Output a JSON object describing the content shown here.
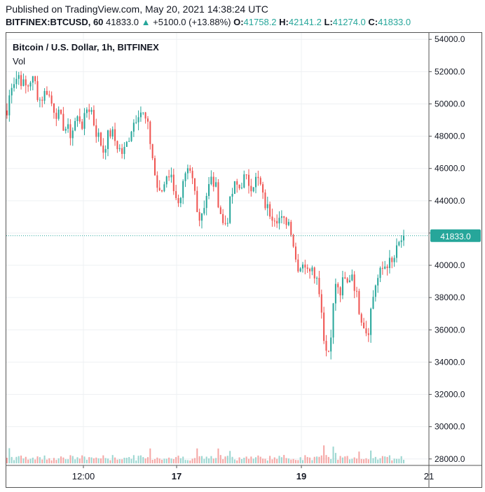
{
  "header": {
    "published": "Published on TradingView.com, May 20, 2021 14:38:24 UTC",
    "symbol": "BITFINEX:BTCUSD, 60",
    "last": "41833.0",
    "change_arrow": "▲",
    "change": "+5100.0 (+13.88%)",
    "o_label": "O:",
    "o_value": "41758.2",
    "h_label": "H:",
    "h_value": "42141.2",
    "l_label": "L:",
    "l_value": "41274.0",
    "c_label": "C:",
    "c_value": "41833.0"
  },
  "colors": {
    "up": "#26a69a",
    "down": "#ef5350",
    "vol_up": "#9ad6d0",
    "vol_down": "#f5a6a4",
    "grid": "#eef0f3"
  },
  "chart_data": {
    "type": "candlestick",
    "title": "Bitcoin / U.S. Dollar, 1h, BITFINEX",
    "volume_label": "Vol",
    "y_ticks": [
      "54000.0",
      "52000.0",
      "50000.0",
      "48000.0",
      "46000.0",
      "44000.0",
      "42000.0",
      "40000.0",
      "38000.0",
      "36000.0",
      "34000.0",
      "32000.0",
      "30000.0",
      "28000.0"
    ],
    "x_ticks": [
      "12:00",
      "17",
      "19",
      "21"
    ],
    "ylim": [
      27600,
      54400
    ],
    "last_price": 41833.0,
    "last_price_label": "41833.0",
    "close_path": [
      [
        0,
        49300
      ],
      [
        1,
        51300
      ],
      [
        2,
        51500
      ],
      [
        3,
        51800
      ],
      [
        4,
        51200
      ],
      [
        5,
        51000
      ],
      [
        6,
        51600
      ],
      [
        7,
        51300
      ],
      [
        8,
        50200
      ],
      [
        9,
        50500
      ],
      [
        10,
        50900
      ],
      [
        11,
        50100
      ],
      [
        12,
        49600
      ],
      [
        13,
        49200
      ],
      [
        14,
        48700
      ],
      [
        15,
        48400
      ],
      [
        16,
        48100
      ],
      [
        17,
        48900
      ],
      [
        18,
        49200
      ],
      [
        19,
        48600
      ],
      [
        20,
        49800
      ],
      [
        21,
        49700
      ],
      [
        22,
        48400
      ],
      [
        23,
        47900
      ],
      [
        24,
        47100
      ],
      [
        25,
        47900
      ],
      [
        26,
        48300
      ],
      [
        27,
        47700
      ],
      [
        28,
        47200
      ],
      [
        29,
        46900
      ],
      [
        30,
        47600
      ],
      [
        31,
        48500
      ],
      [
        32,
        49100
      ],
      [
        33,
        49700
      ],
      [
        34,
        49300
      ],
      [
        35,
        48700
      ],
      [
        36,
        47300
      ],
      [
        37,
        45400
      ],
      [
        38,
        44300
      ],
      [
        39,
        44800
      ],
      [
        40,
        45900
      ],
      [
        41,
        45400
      ],
      [
        42,
        44600
      ],
      [
        43,
        43300
      ],
      [
        44,
        44900
      ],
      [
        45,
        45700
      ],
      [
        46,
        45600
      ],
      [
        47,
        44400
      ],
      [
        48,
        42900
      ],
      [
        49,
        43600
      ],
      [
        50,
        44600
      ],
      [
        51,
        45300
      ],
      [
        52,
        44900
      ],
      [
        53,
        43700
      ],
      [
        54,
        42400
      ],
      [
        55,
        42900
      ],
      [
        56,
        44300
      ],
      [
        57,
        45000
      ],
      [
        58,
        44800
      ],
      [
        59,
        45400
      ],
      [
        60,
        45200
      ],
      [
        61,
        45000
      ],
      [
        62,
        45300
      ],
      [
        63,
        45200
      ],
      [
        64,
        44000
      ],
      [
        65,
        43500
      ],
      [
        66,
        43200
      ],
      [
        67,
        43100
      ],
      [
        68,
        42900
      ],
      [
        69,
        42600
      ],
      [
        70,
        42900
      ],
      [
        71,
        42200
      ],
      [
        72,
        40400
      ],
      [
        73,
        39800
      ],
      [
        74,
        40400
      ],
      [
        75,
        39500
      ],
      [
        76,
        40300
      ],
      [
        77,
        39400
      ],
      [
        78,
        38500
      ],
      [
        79,
        35800
      ],
      [
        80,
        34200
      ],
      [
        81,
        36300
      ],
      [
        82,
        38900
      ],
      [
        83,
        38100
      ],
      [
        84,
        39100
      ],
      [
        85,
        38800
      ],
      [
        86,
        39700
      ],
      [
        87,
        38400
      ],
      [
        88,
        37200
      ],
      [
        89,
        36400
      ],
      [
        90,
        35700
      ],
      [
        91,
        37600
      ],
      [
        92,
        38900
      ],
      [
        93,
        39400
      ],
      [
        94,
        39900
      ],
      [
        95,
        40200
      ],
      [
        96,
        40000
      ],
      [
        97,
        40700
      ],
      [
        98,
        41400
      ],
      [
        99,
        41833
      ]
    ],
    "volume_note": "volume bars shown beneath price"
  }
}
